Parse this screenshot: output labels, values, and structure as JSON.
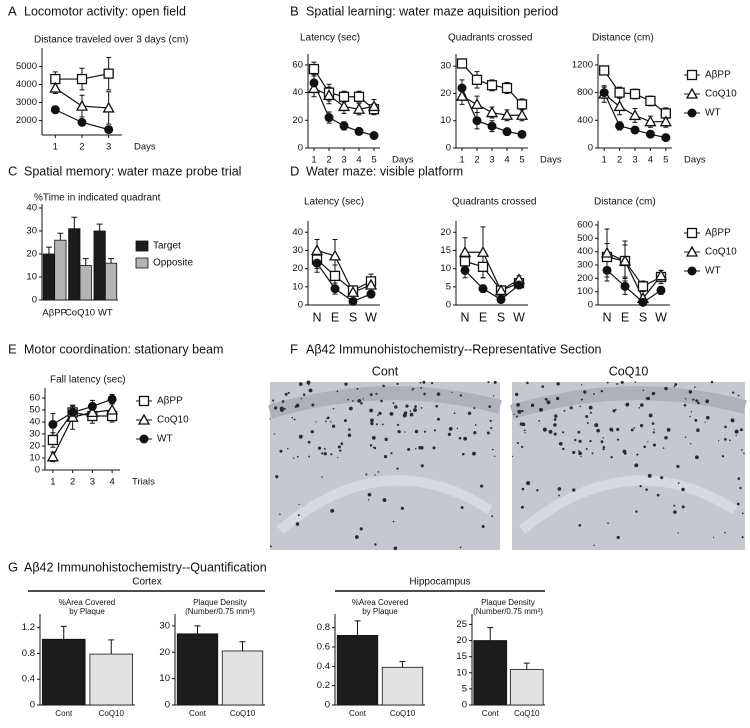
{
  "chart_data": [
    {
      "type": "line",
      "letter": "A",
      "panel_title": "Locomotor activity: open field",
      "ylabel": [
        "Distance traveled over 3 days (cm)"
      ],
      "xlabel": "Days",
      "x": [
        1,
        2,
        3
      ],
      "xlim": [
        0.5,
        3.5
      ],
      "xticks": [
        1,
        2,
        3
      ],
      "ylim": [
        1200,
        5800
      ],
      "yticks": [
        2000,
        3000,
        4000,
        5000
      ],
      "series": [
        {
          "marker": "square",
          "values": [
            4300,
            4300,
            4600
          ],
          "errors": [
            400,
            600,
            900
          ]
        },
        {
          "marker": "triangle",
          "values": [
            3800,
            2800,
            2700
          ],
          "errors": [
            300,
            600,
            900
          ]
        },
        {
          "marker": "circle",
          "values": [
            2600,
            1900,
            1500
          ],
          "errors": [
            200,
            150,
            100
          ]
        }
      ]
    },
    {
      "type": "line",
      "letter": "B",
      "panel_title": "Spatial learning: water maze aquisition period",
      "ylabel": [
        "Latency (sec)"
      ],
      "xlabel": "Days",
      "x": [
        1,
        2,
        3,
        4,
        5
      ],
      "xlim": [
        0.6,
        5.4
      ],
      "xticks": [
        1,
        2,
        3,
        4,
        5
      ],
      "ylim": [
        0,
        65
      ],
      "yticks": [
        0,
        20,
        40,
        60
      ],
      "series": [
        {
          "marker": "square",
          "values": [
            57,
            40,
            37,
            37,
            28
          ],
          "errors": [
            5,
            6,
            4,
            4,
            4
          ]
        },
        {
          "marker": "triangle",
          "values": [
            43,
            38,
            30,
            28,
            30
          ],
          "errors": [
            6,
            6,
            5,
            4,
            5
          ]
        },
        {
          "marker": "circle",
          "values": [
            47,
            22,
            16,
            12,
            9
          ],
          "errors": [
            6,
            4,
            3,
            2,
            2
          ]
        }
      ]
    },
    {
      "type": "line",
      "ylabel": [
        "Quadrants crossed"
      ],
      "xlabel": "Days",
      "x": [
        1,
        2,
        3,
        4,
        5
      ],
      "xlim": [
        0.6,
        5.4
      ],
      "xticks": [
        1,
        2,
        3,
        4,
        5
      ],
      "ylim": [
        0,
        33
      ],
      "yticks": [
        0,
        10,
        20,
        30
      ],
      "series": [
        {
          "marker": "square",
          "values": [
            31,
            25,
            23,
            22,
            16
          ],
          "errors": [
            1,
            3,
            2,
            2,
            2
          ]
        },
        {
          "marker": "triangle",
          "values": [
            19,
            16,
            13,
            12,
            12
          ],
          "errors": [
            3,
            3,
            2,
            2,
            2
          ]
        },
        {
          "marker": "circle",
          "values": [
            22,
            10,
            8,
            6,
            5
          ],
          "errors": [
            3,
            3,
            2,
            1,
            1
          ]
        }
      ]
    },
    {
      "type": "line",
      "ylabel": [
        "Distance (cm)"
      ],
      "xlabel": "Days",
      "x": [
        1,
        2,
        3,
        4,
        5
      ],
      "xlim": [
        0.6,
        5.4
      ],
      "xticks": [
        1,
        2,
        3,
        4,
        5
      ],
      "ylim": [
        0,
        1300
      ],
      "yticks": [
        0,
        400,
        800,
        1200
      ],
      "legend": "right",
      "series": [
        {
          "name": "AβPP",
          "marker": "square",
          "values": [
            1120,
            800,
            780,
            680,
            500
          ],
          "errors": [
            60,
            80,
            70,
            70,
            80
          ]
        },
        {
          "name": "CoQ10",
          "marker": "triangle",
          "values": [
            780,
            600,
            470,
            380,
            380
          ],
          "errors": [
            120,
            120,
            100,
            80,
            80
          ]
        },
        {
          "name": "WT",
          "marker": "circle",
          "values": [
            800,
            320,
            260,
            200,
            150
          ],
          "errors": [
            80,
            60,
            50,
            40,
            40
          ]
        }
      ]
    },
    {
      "type": "bar",
      "letter": "C",
      "panel_title": "Spatial memory: water maze probe trial",
      "ylabel": [
        "%Time in indicated quadrant"
      ],
      "categories": [
        "AβPP",
        "CoQ10",
        "WT"
      ],
      "ylim": [
        0,
        40
      ],
      "yticks": [
        0,
        10,
        20,
        30,
        40
      ],
      "legend": "right",
      "series": [
        {
          "name": "Target",
          "color": "#1c1c1c",
          "values": [
            20,
            31,
            30
          ],
          "errors": [
            3,
            5,
            3
          ]
        },
        {
          "name": "Opposite",
          "color": "#b4b4b4",
          "values": [
            26,
            15,
            16
          ],
          "errors": [
            3,
            3,
            2
          ]
        }
      ]
    },
    {
      "type": "line",
      "letter": "D",
      "panel_title": "Water maze: visible platform",
      "ylabel": [
        "Latency (sec)"
      ],
      "categories": [
        "N",
        "E",
        "S",
        "W"
      ],
      "ylim": [
        0,
        44
      ],
      "yticks": [
        0,
        10,
        20,
        30,
        40
      ],
      "series": [
        {
          "marker": "square",
          "values": [
            25,
            16,
            8,
            13
          ],
          "errors": [
            5,
            6,
            2,
            4
          ]
        },
        {
          "marker": "triangle",
          "values": [
            30,
            27,
            7,
            11
          ],
          "errors": [
            6,
            9,
            2,
            3
          ]
        },
        {
          "marker": "circle",
          "values": [
            23,
            9,
            2,
            6
          ],
          "errors": [
            5,
            3,
            1,
            2
          ]
        }
      ]
    },
    {
      "type": "line",
      "ylabel": [
        "Quadrants crossed"
      ],
      "categories": [
        "N",
        "E",
        "S",
        "W"
      ],
      "ylim": [
        0,
        22
      ],
      "yticks": [
        0,
        5,
        10,
        15,
        20
      ],
      "series": [
        {
          "marker": "square",
          "values": [
            12,
            10.5,
            4,
            6
          ],
          "errors": [
            3,
            3,
            1,
            1
          ]
        },
        {
          "marker": "triangle",
          "values": [
            14.5,
            14.5,
            4,
            7
          ],
          "errors": [
            4,
            7,
            1,
            1
          ]
        },
        {
          "marker": "circle",
          "values": [
            9.5,
            4.5,
            1.5,
            5.5
          ],
          "errors": [
            2,
            1,
            0.5,
            1
          ]
        }
      ]
    },
    {
      "type": "line",
      "ylabel": [
        "Distance (cm)"
      ],
      "categories": [
        "N",
        "E",
        "S",
        "W"
      ],
      "ylim": [
        0,
        600
      ],
      "yticks": [
        0,
        100,
        200,
        300,
        400,
        500,
        600
      ],
      "legend": "right",
      "series": [
        {
          "name": "AβPP",
          "marker": "square",
          "values": [
            360,
            330,
            140,
            210
          ],
          "errors": [
            100,
            120,
            40,
            50
          ]
        },
        {
          "name": "CoQ10",
          "marker": "triangle",
          "values": [
            390,
            330,
            50,
            220
          ],
          "errors": [
            180,
            150,
            20,
            40
          ]
        },
        {
          "name": "WT",
          "marker": "circle",
          "values": [
            260,
            140,
            20,
            110
          ],
          "errors": [
            80,
            60,
            10,
            30
          ]
        }
      ]
    },
    {
      "type": "line",
      "letter": "E",
      "panel_title": "Motor coordination: stationary beam",
      "ylabel": [
        "Fall latency (sec)"
      ],
      "xlabel": "Trials",
      "x": [
        1,
        2,
        3,
        4
      ],
      "xlim": [
        0.6,
        4.4
      ],
      "xticks": [
        1,
        2,
        3,
        4
      ],
      "ylim": [
        0,
        65
      ],
      "yticks": [
        0,
        10,
        20,
        30,
        40,
        50,
        60
      ],
      "legend": "right",
      "series": [
        {
          "name": "AβPP",
          "marker": "square",
          "values": [
            25,
            48,
            45,
            45
          ],
          "errors": [
            6,
            5,
            6,
            5
          ]
        },
        {
          "name": "CoQ10",
          "marker": "triangle",
          "values": [
            11,
            44,
            48,
            50
          ],
          "errors": [
            4,
            10,
            6,
            6
          ]
        },
        {
          "name": "WT",
          "marker": "circle",
          "values": [
            38,
            48,
            53,
            59
          ],
          "errors": [
            9,
            6,
            5,
            4
          ]
        }
      ]
    },
    {
      "type": "image",
      "letter": "F",
      "panel_title": "Aβ42 Immunohistochemistry--Representative Section",
      "captions": [
        "Cont",
        "CoQ10"
      ]
    },
    {
      "type": "bar",
      "letter": "G",
      "panel_title": "Aβ42 Immunohistochemistry--Quantification",
      "group_label": "Cortex",
      "ylabel": [
        "%Area Covered",
        "by Plaque"
      ],
      "categories": [
        "Cont",
        "CoQ10"
      ],
      "colors": [
        "#1c1c1c",
        "#e2e2e2"
      ],
      "values": [
        1.02,
        0.79
      ],
      "errors": [
        0.2,
        0.22
      ],
      "ylim": [
        0,
        1.35
      ],
      "yticks": [
        0,
        0.4,
        0.8,
        1.2
      ]
    },
    {
      "type": "bar",
      "ylabel": [
        "Plaque Density",
        "(Number/0.75 mm²)"
      ],
      "categories": [
        "Cont",
        "CoQ10"
      ],
      "colors": [
        "#1c1c1c",
        "#e2e2e2"
      ],
      "values": [
        27,
        20.5
      ],
      "errors": [
        3,
        3.5
      ],
      "ylim": [
        0,
        33
      ],
      "yticks": [
        0,
        10,
        20,
        30
      ]
    },
    {
      "type": "bar",
      "group_label": "Hippocampus",
      "ylabel": [
        "%Area Covered",
        "by Plaque"
      ],
      "categories": [
        "Cont",
        "CoQ10"
      ],
      "colors": [
        "#1c1c1c",
        "#e2e2e2"
      ],
      "values": [
        0.72,
        0.39
      ],
      "errors": [
        0.15,
        0.06
      ],
      "ylim": [
        0,
        0.9
      ],
      "yticks": [
        0,
        0.2,
        0.4,
        0.6,
        0.8
      ]
    },
    {
      "type": "bar",
      "ylabel": [
        "Plaque Density",
        "(Number/0.75 mm²)"
      ],
      "categories": [
        "Cont",
        "CoQ10"
      ],
      "colors": [
        "#1c1c1c",
        "#e2e2e2"
      ],
      "values": [
        20,
        11
      ],
      "errors": [
        4,
        2
      ],
      "ylim": [
        0,
        27
      ],
      "yticks": [
        0,
        5,
        10,
        15,
        20,
        25
      ]
    }
  ]
}
